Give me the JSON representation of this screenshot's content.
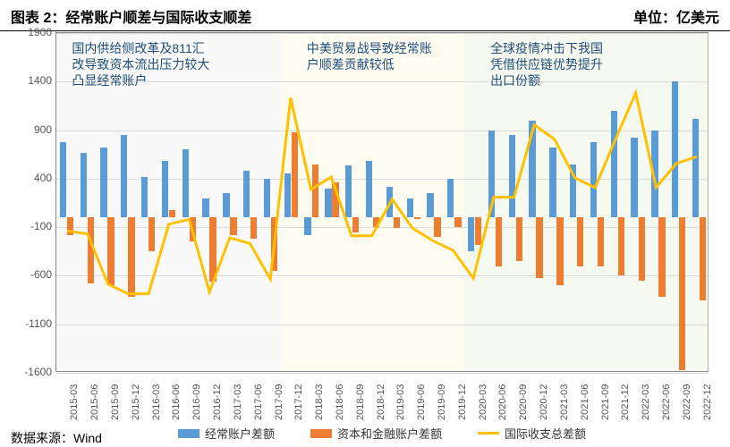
{
  "title": "图表 2：经常账户顺差与国际收支顺差",
  "unit": "单位：亿美元",
  "source": "数据来源：Wind",
  "chart": {
    "type": "bar+line",
    "ylim": [
      -1600,
      1900
    ],
    "yticks": [
      -1600,
      -1100,
      -600,
      -100,
      400,
      900,
      1400,
      1900
    ],
    "grid_color": "#d9d9d9",
    "background_color": "#ffffff",
    "border_color": "#888888",
    "categories": [
      "2015-03",
      "2015-06",
      "2015-09",
      "2015-12",
      "2016-03",
      "2016-06",
      "2016-09",
      "2016-12",
      "2017-03",
      "2017-06",
      "2017-09",
      "2017-12",
      "2018-03",
      "2018-06",
      "2018-09",
      "2018-12",
      "2019-03",
      "2019-06",
      "2019-09",
      "2019-12",
      "2020-03",
      "2020-06",
      "2020-09",
      "2020-12",
      "2021-03",
      "2021-06",
      "2021-09",
      "2021-12",
      "2022-03",
      "2022-06",
      "2022-09",
      "2022-12"
    ],
    "series": {
      "current_account": {
        "label": "经常账户差额",
        "color": "#5b9bd5",
        "values": [
          780,
          670,
          720,
          850,
          420,
          580,
          700,
          200,
          250,
          480,
          400,
          450,
          -180,
          300,
          540,
          580,
          320,
          200,
          250,
          400,
          -350,
          900,
          850,
          1000,
          720,
          550,
          780,
          1100,
          820,
          900,
          1400,
          1020
        ]
      },
      "capital_account": {
        "label": "资本和金融账户差额",
        "color": "#ed7d31",
        "values": [
          -180,
          -680,
          -700,
          -820,
          -350,
          80,
          -250,
          -660,
          -180,
          -220,
          -550,
          880,
          550,
          360,
          -150,
          -100,
          -110,
          -20,
          -200,
          -100,
          -280,
          -500,
          -450,
          -620,
          -700,
          -500,
          -500,
          -600,
          -650,
          -820,
          -1570,
          -850
        ]
      },
      "bop_total": {
        "label": "国际收支总差额",
        "color": "#ffc000",
        "line_width": 3,
        "values": [
          -150,
          -180,
          -700,
          -800,
          -800,
          -80,
          -30,
          -780,
          -220,
          -280,
          -650,
          1230,
          280,
          410,
          -200,
          -200,
          180,
          -120,
          -250,
          -350,
          -640,
          200,
          200,
          950,
          800,
          400,
          300,
          800,
          1280,
          300,
          550,
          620
        ]
      }
    },
    "regions": [
      {
        "from": 0,
        "to": 11,
        "color": "#f2f2f2"
      },
      {
        "from": 11,
        "to": 20,
        "color": "#fdf7de"
      },
      {
        "from": 20,
        "to": 32,
        "color": "#eaf1dd"
      }
    ],
    "annotations": [
      {
        "text": "国内供给侧改革及811汇\n改导致资本流出压力较大\n凸显经常账户",
        "at": 0.5,
        "color": "#1f4e79",
        "fontsize": 14
      },
      {
        "text": "中美贸易战导致经常账\n户顺差贡献较低",
        "at": 12,
        "color": "#1f4e79",
        "fontsize": 14
      },
      {
        "text": "全球疫情冲击下我国\n凭借供应链优势提升\n出口份额",
        "at": 21,
        "color": "#1f4e79",
        "fontsize": 14
      }
    ]
  }
}
